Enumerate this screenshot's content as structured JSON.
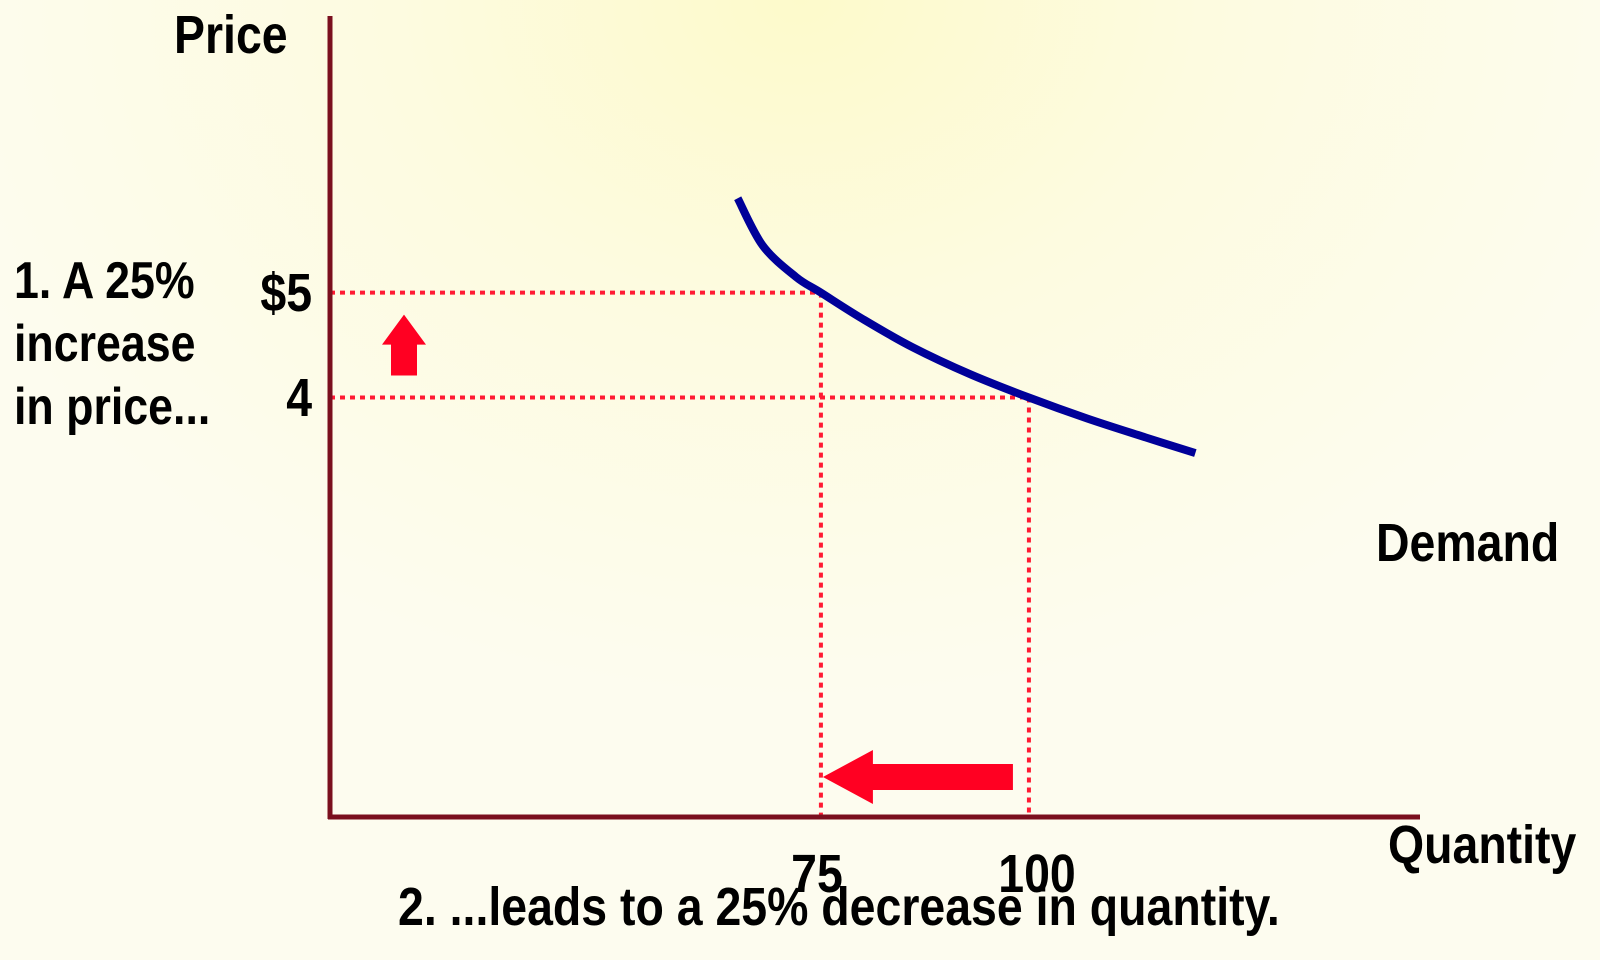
{
  "chart_data": {
    "type": "line",
    "title": "",
    "xlabel": "Quantity",
    "ylabel": "Price",
    "series": [
      {
        "name": "Demand",
        "x": [
          65,
          68,
          72,
          75,
          80,
          86,
          93,
          100,
          107,
          114,
          120
        ],
        "y": [
          5.9,
          5.45,
          5.15,
          5.0,
          4.75,
          4.48,
          4.22,
          4.0,
          3.8,
          3.62,
          3.47
        ]
      }
    ],
    "highlighted_points": [
      {
        "x": 75,
        "y": 5
      },
      {
        "x": 100,
        "y": 4
      }
    ],
    "y_ticks": [
      {
        "value": 5,
        "label": "$5"
      },
      {
        "value": 4,
        "label": "4"
      }
    ],
    "x_ticks": [
      {
        "value": 75,
        "label": "75"
      },
      {
        "value": 100,
        "label": "100"
      }
    ],
    "annotations": {
      "price_change": "1. A 25%\nincrease\nin price...",
      "quantity_change": "2. ...leads to a 25% decrease in quantity."
    },
    "xlim": [
      16,
      147
    ],
    "ylim": [
      0,
      7.6
    ],
    "grid": false,
    "colors": {
      "axis": "#7a0f1e",
      "demand": "#000099",
      "guides": "#ff1a33",
      "arrows": "#ff0022"
    }
  }
}
